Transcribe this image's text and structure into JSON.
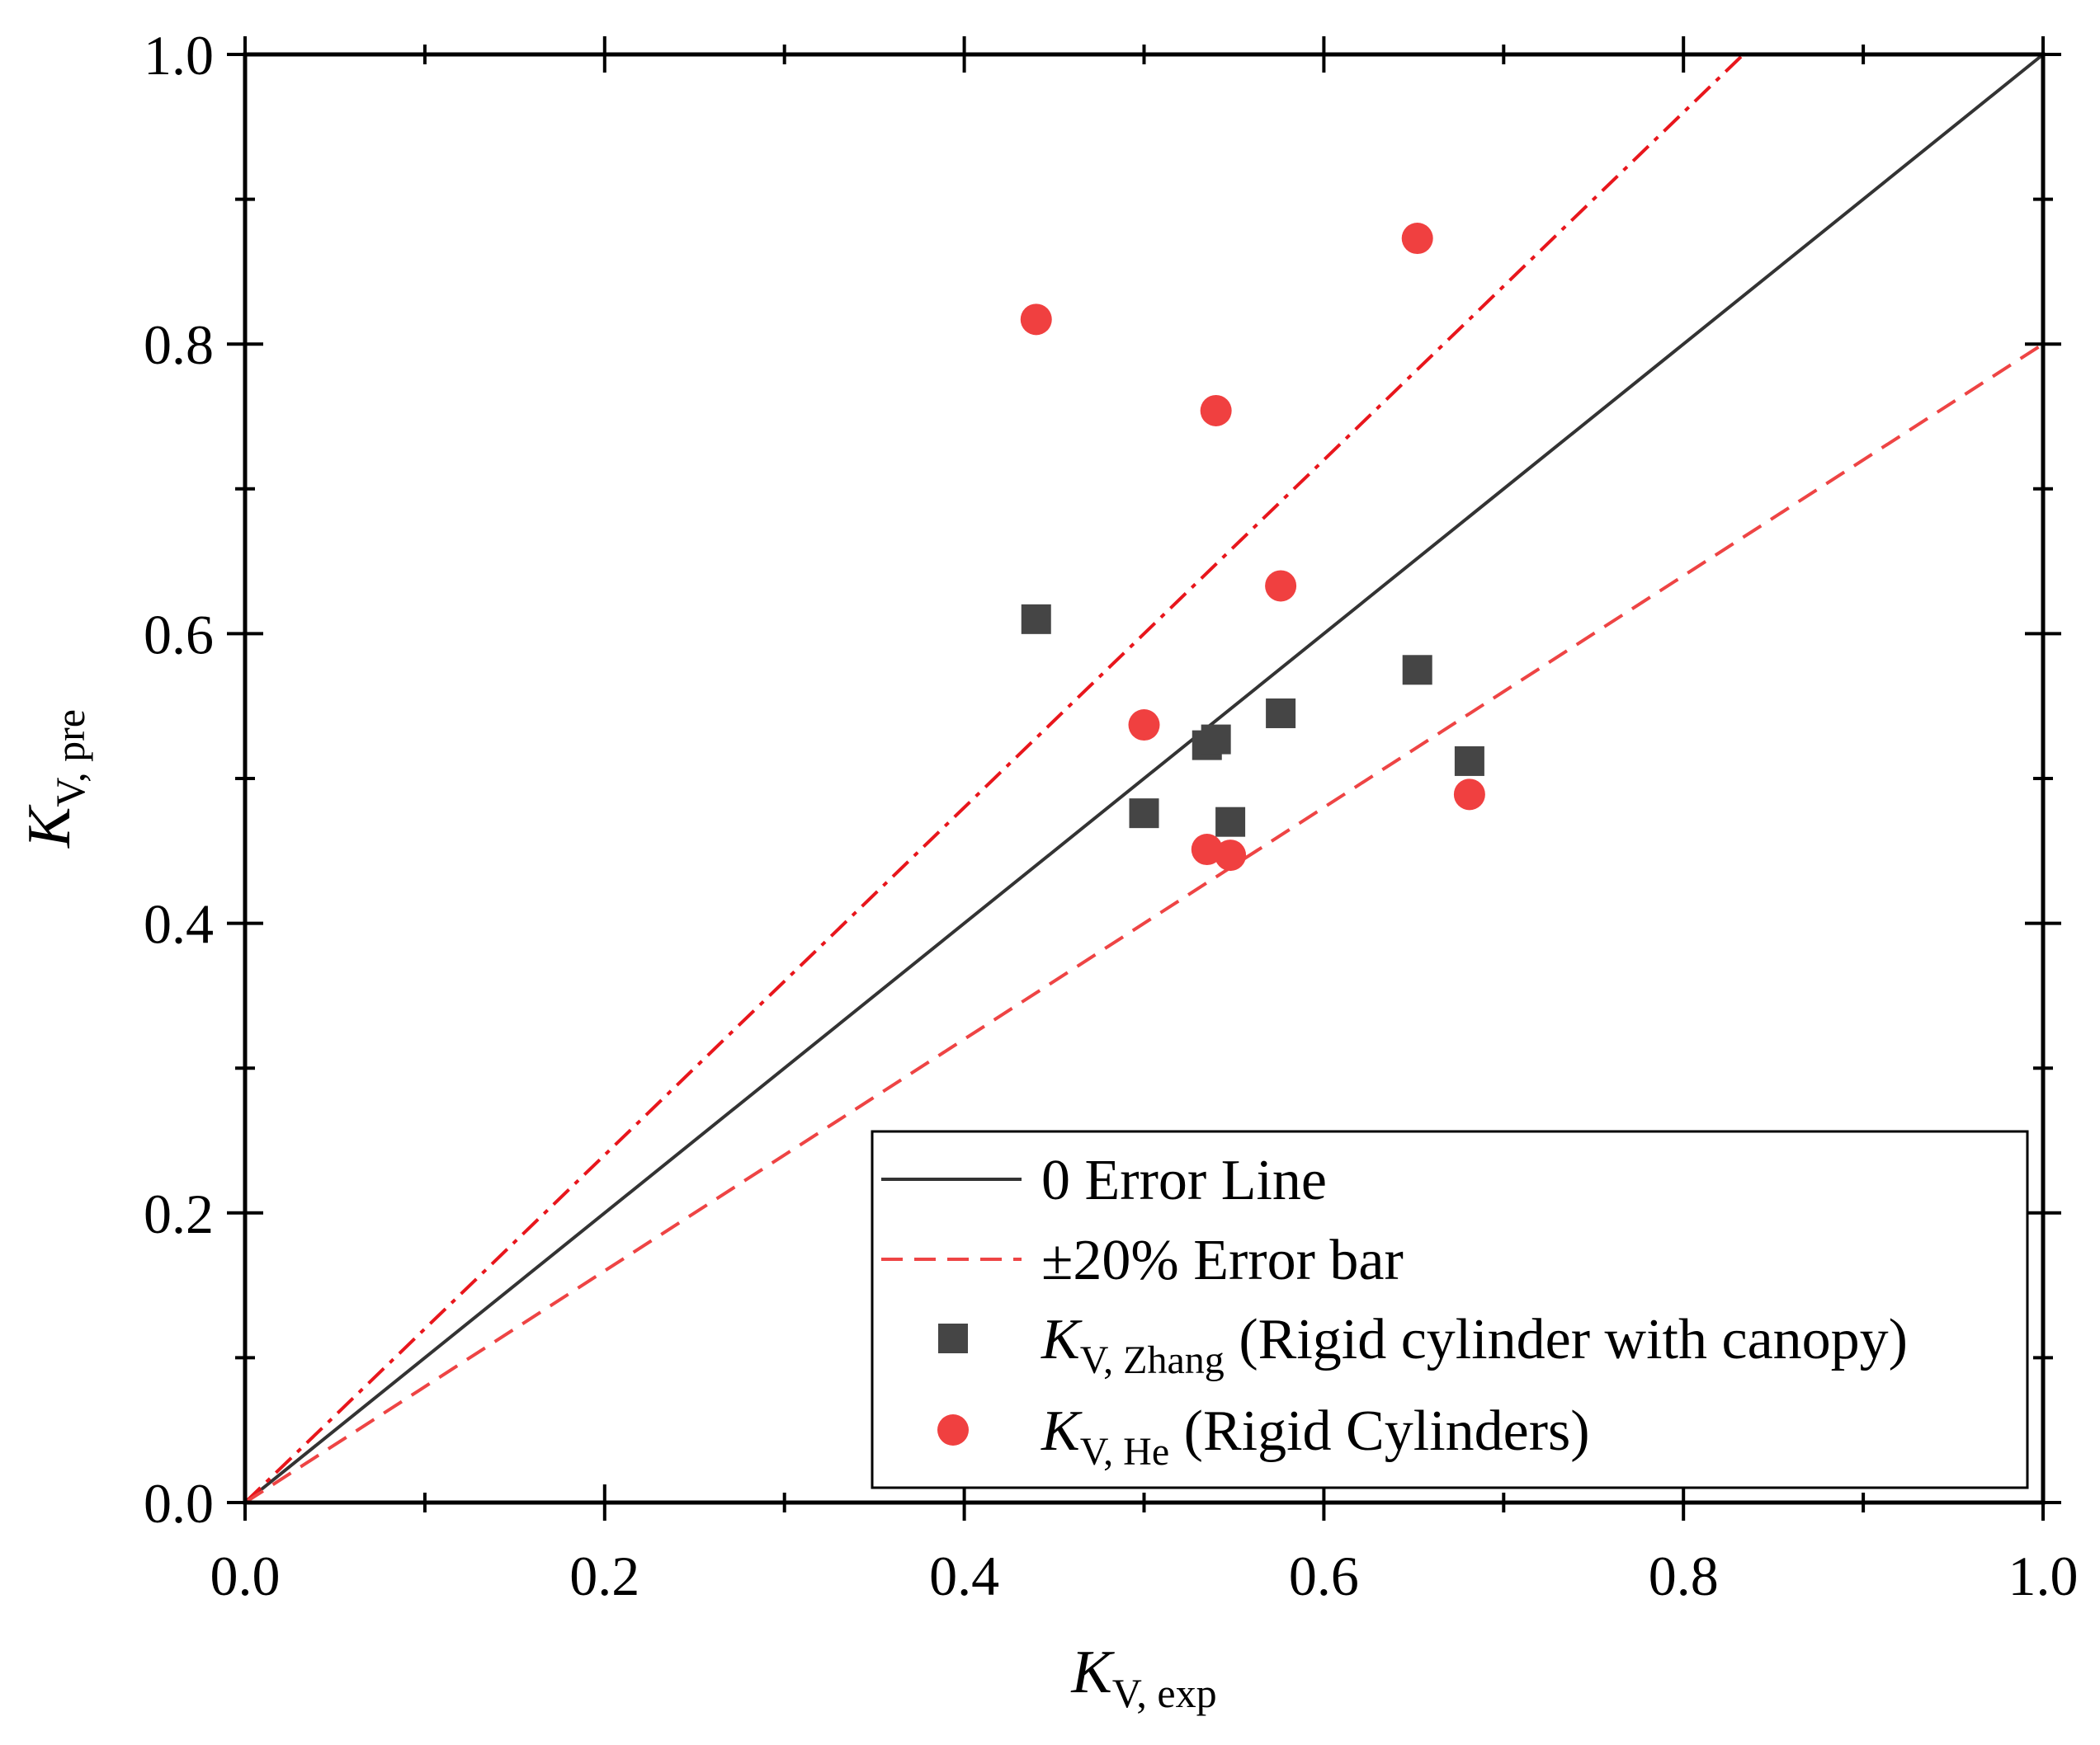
{
  "chart_data": {
    "type": "scatter",
    "title": "",
    "xlabel": {
      "main": "K",
      "sub": "V, exp"
    },
    "ylabel": {
      "main": "K",
      "sub": "V, pre"
    },
    "xlim": [
      0,
      1
    ],
    "ylim": [
      0,
      1
    ],
    "x_ticks": [
      0.0,
      0.2,
      0.4,
      0.6,
      0.8,
      1.0
    ],
    "y_ticks": [
      0.0,
      0.2,
      0.4,
      0.6,
      0.8,
      1.0
    ],
    "x_tick_labels": [
      "0.0",
      "0.2",
      "0.4",
      "0.6",
      "0.8",
      "1.0"
    ],
    "y_tick_labels": [
      "0.0",
      "0.2",
      "0.4",
      "0.6",
      "0.8",
      "1.0"
    ],
    "minor_tick_step": 0.1,
    "grid": false,
    "legend_position": "bottom-right",
    "reference_lines": [
      {
        "name": "0 Error Line",
        "slope": 1.0,
        "style": "solid",
        "color": "#333333"
      },
      {
        "name": "+20% Error",
        "slope": 1.2,
        "style": "dash-dot",
        "color": "#e8161c"
      },
      {
        "name": "-20% Error",
        "slope": 0.8,
        "style": "dashed",
        "color": "#ee4444"
      }
    ],
    "series": [
      {
        "name": "K_V, Zhang (Rigid cylinder with canopy)",
        "marker": "square",
        "color": "#454545",
        "points": [
          {
            "x": 0.44,
            "y": 0.61
          },
          {
            "x": 0.5,
            "y": 0.476
          },
          {
            "x": 0.535,
            "y": 0.523
          },
          {
            "x": 0.54,
            "y": 0.527
          },
          {
            "x": 0.548,
            "y": 0.47
          },
          {
            "x": 0.576,
            "y": 0.545
          },
          {
            "x": 0.652,
            "y": 0.575
          },
          {
            "x": 0.681,
            "y": 0.512
          }
        ]
      },
      {
        "name": "K_V, He (Rigid Cylinders)",
        "marker": "circle",
        "color": "#f04040",
        "points": [
          {
            "x": 0.44,
            "y": 0.817
          },
          {
            "x": 0.5,
            "y": 0.537
          },
          {
            "x": 0.535,
            "y": 0.451
          },
          {
            "x": 0.54,
            "y": 0.754
          },
          {
            "x": 0.548,
            "y": 0.447
          },
          {
            "x": 0.576,
            "y": 0.633
          },
          {
            "x": 0.652,
            "y": 0.873
          },
          {
            "x": 0.681,
            "y": 0.489
          }
        ]
      }
    ],
    "legend": [
      {
        "symbol": "line-solid",
        "color": "#333333",
        "text": "0 Error Line"
      },
      {
        "symbol": "line-dashed",
        "color": "#ee4444",
        "text": "±20% Error bar"
      },
      {
        "symbol": "square",
        "color": "#454545",
        "main": "K",
        "sub": "V, Zhang",
        "rest": " (Rigid cylinder with canopy)"
      },
      {
        "symbol": "circle",
        "color": "#f04040",
        "main": "K",
        "sub": "V, He",
        "rest": " (Rigid Cylinders)"
      }
    ]
  }
}
